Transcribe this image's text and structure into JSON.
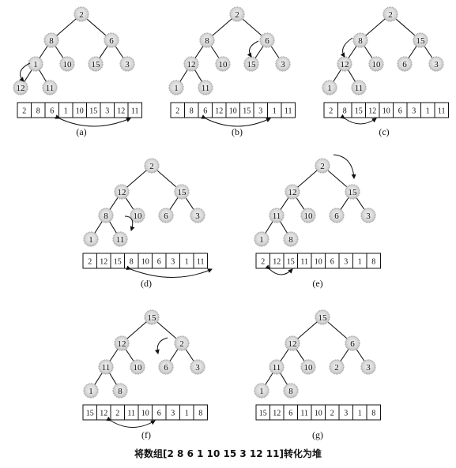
{
  "caption": "将数组[2 8 6 1 10 15 3 12 11]转化为堆",
  "panels": [
    {
      "label": "(a)",
      "array": [
        "2",
        "8",
        "6",
        "1",
        "10",
        "15",
        "3",
        "12",
        "11"
      ]
    },
    {
      "label": "(b)",
      "array": [
        "2",
        "8",
        "6",
        "12",
        "10",
        "15",
        "3",
        "1",
        "11"
      ]
    },
    {
      "label": "(c)",
      "array": [
        "2",
        "8",
        "15",
        "12",
        "10",
        "6",
        "3",
        "1",
        "11"
      ]
    },
    {
      "label": "(d)",
      "array": [
        "2",
        "12",
        "15",
        "8",
        "10",
        "6",
        "3",
        "1",
        "11"
      ]
    },
    {
      "label": "(e)",
      "array": [
        "2",
        "12",
        "15",
        "11",
        "10",
        "6",
        "3",
        "1",
        "8"
      ]
    },
    {
      "label": "(f)",
      "array": [
        "15",
        "12",
        "2",
        "11",
        "10",
        "6",
        "3",
        "1",
        "8"
      ]
    },
    {
      "label": "(g)",
      "array": [
        "15",
        "12",
        "6",
        "11",
        "10",
        "2",
        "3",
        "1",
        "8"
      ]
    }
  ],
  "colors": {
    "node_fill": "#d9d9d9",
    "node_ring": "#b0b0b0",
    "ink": "#111111"
  }
}
